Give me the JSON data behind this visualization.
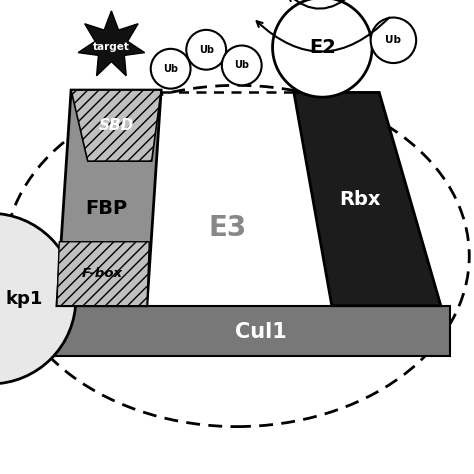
{
  "bg_color": "#ffffff",
  "cul1_color": "#787878",
  "cul1_dark": "#606060",
  "fbp_color": "#909090",
  "sbd_hatch_color": "#c0c0c0",
  "rbx_color": "#1c1c1c",
  "skp1_color": "#e8e8e8",
  "target_color": "#111111",
  "ub_fill": "#ffffff",
  "e2_fill": "#ffffff",
  "e3_label": "E3",
  "cul1_label": "Cul1",
  "fbp_label": "FBP",
  "sbd_label": "SBD",
  "fbox_label": "F-box",
  "skp1_label": "kp1",
  "rbx_label": "Rbx",
  "e2_label": "E2",
  "target_label": "target",
  "ub_label": "Ub"
}
